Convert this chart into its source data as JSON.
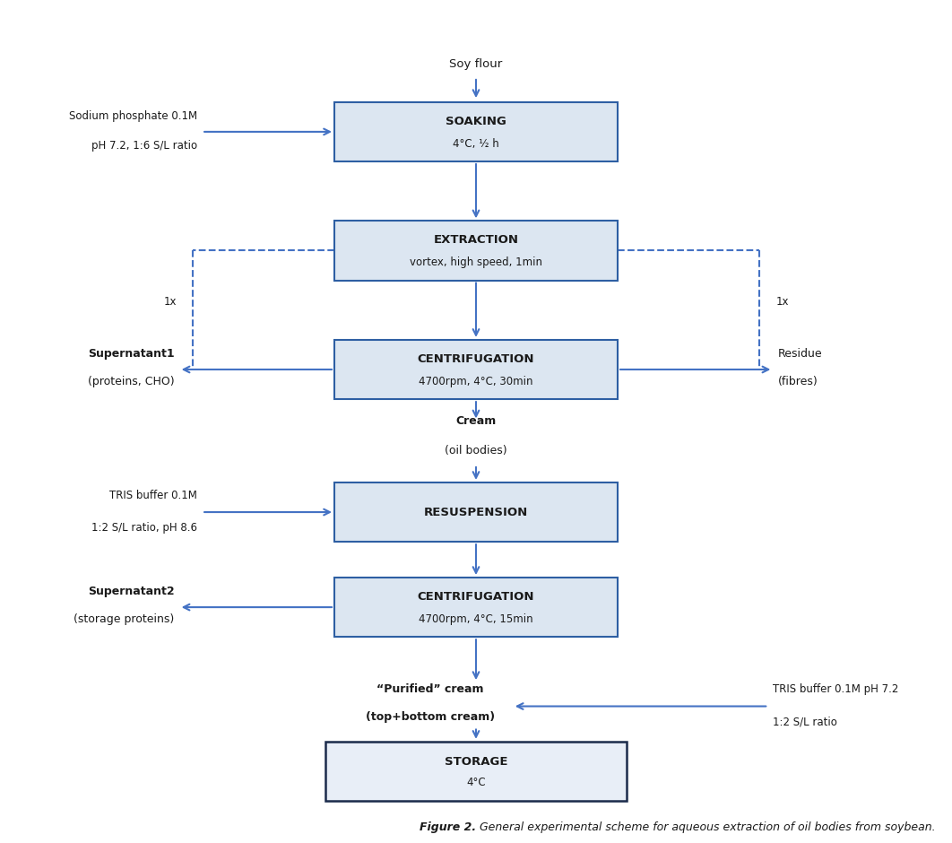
{
  "figure_width": 10.62,
  "figure_height": 9.4,
  "dpi": 100,
  "bg_color": "#ffffff",
  "box_fill": "#dce6f1",
  "box_edge": "#2e5fa3",
  "arrow_color": "#4472c4",
  "text_color": "#000000",
  "soy_label": "Soy flour",
  "soaking_line1": "SOAKING",
  "soaking_line2": "4°C, ½ h",
  "extraction_line1": "EXTRACTION",
  "extraction_line2": "vortex, high speed, 1min",
  "cent1_line1": "CENTRIFUGATION",
  "cent1_line2": "4700rpm, 4°C, 30min",
  "resusp_line1": "RESUSPENSION",
  "cent2_line1": "CENTRIFUGATION",
  "cent2_line2": "4700rpm, 4°C, 15min",
  "stor_line1": "STORAGE",
  "stor_line2": "4°C",
  "sodium_phos_line1": "Sodium phosphate 0.1M",
  "sodium_phos_line2": "pH 7.2, 1:6 S/L ratio",
  "loop_label": "1x",
  "super1_line1": "Supernatant1",
  "super1_line2": "(proteins, CHO)",
  "residue_line1": "Residue",
  "residue_line2": "(fibres)",
  "cream_line1": "Cream",
  "cream_line2": "(oil bodies)",
  "tris1_line1": "TRIS buffer 0.1M",
  "tris1_line2": "1:2 S/L ratio, pH 8.6",
  "super2_line1": "Supernatant2",
  "super2_line2": "(storage proteins)",
  "purif_line1": "“Purified” cream",
  "purif_line2": "(top+bottom cream)",
  "tris2_line1": "TRIS buffer 0.1M pH 7.2",
  "tris2_line2": "1:2 S/L ratio",
  "caption_bold": "Figure 2.",
  "caption_rest": " General experimental scheme for aqueous extraction of oil bodies from soybean."
}
